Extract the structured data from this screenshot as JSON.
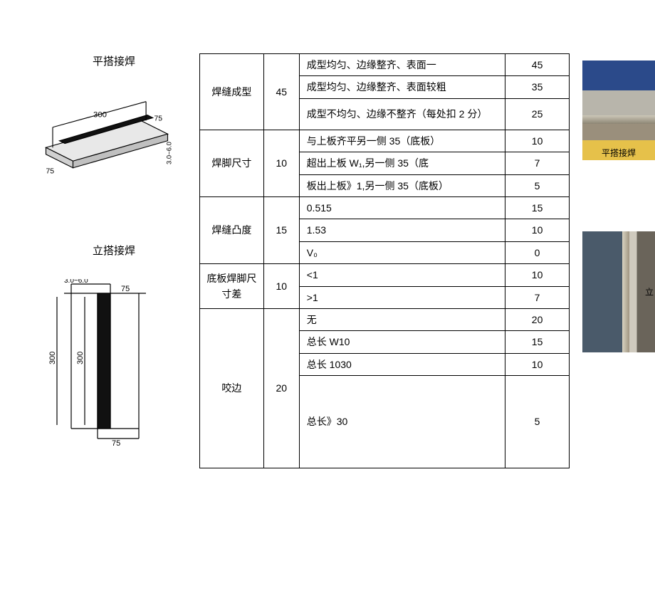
{
  "left": {
    "title1": "平搭接焊",
    "title2": "立搭接焊",
    "diag1": {
      "len": "300",
      "w1": "75",
      "w2": "75",
      "thk": "3.0~6.0",
      "plate_color": "#cccccc",
      "weld_color": "#111111"
    },
    "diag2": {
      "thk": "3.0~6.0",
      "w1": "75",
      "w2": "75",
      "h1": "300",
      "h2": "300",
      "weld_color": "#111111"
    }
  },
  "table": {
    "col_widths": [
      "90px",
      "50px",
      "290px",
      "90px"
    ],
    "rows": [
      {
        "cat": "焊缝成型",
        "max": "45",
        "items": [
          {
            "desc": "成型均匀、边缘整齐、表面一",
            "score": "45",
            "h": ""
          },
          {
            "desc": "成型均匀、边缘整齐、表面较粗",
            "score": "35",
            "h": ""
          },
          {
            "desc": "成型不均匀、边缘不整齐（每处扣 2 分）",
            "score": "25",
            "h": "med"
          }
        ]
      },
      {
        "cat": "焊脚尺寸",
        "max": "10",
        "items": [
          {
            "desc": "与上板齐平另一侧 35（底板）",
            "score": "10",
            "h": ""
          },
          {
            "desc": "超出上板 W₁,另一侧 35（底",
            "score": "7",
            "h": ""
          },
          {
            "desc": "板出上板》1,另一侧 35（底板）",
            "score": "5",
            "h": ""
          }
        ]
      },
      {
        "cat": "焊缝凸度",
        "max": "15",
        "items": [
          {
            "desc": "0.515",
            "score": "15",
            "h": ""
          },
          {
            "desc": "1.53",
            "score": "10",
            "h": ""
          },
          {
            "desc": "V₀",
            "score": "0",
            "h": ""
          }
        ]
      },
      {
        "cat": "底板焊脚尺寸差",
        "max": "10",
        "items": [
          {
            "desc": "<1",
            "score": "10",
            "h": ""
          },
          {
            "desc": ">1",
            "score": "7",
            "h": ""
          }
        ]
      },
      {
        "cat": "咬边",
        "max": "20",
        "items": [
          {
            "desc": "无",
            "score": "20",
            "h": ""
          },
          {
            "desc": "总长 W10",
            "score": "15",
            "h": ""
          },
          {
            "desc": "总长 1030",
            "score": "10",
            "h": ""
          },
          {
            "desc": "总长》30",
            "score": "5",
            "h": "tall"
          }
        ]
      }
    ]
  },
  "photos": {
    "p1_caption": "平搭接焊",
    "p2_side": "立"
  }
}
